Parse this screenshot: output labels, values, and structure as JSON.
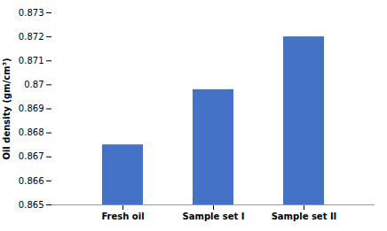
{
  "chart_data": {
    "type": "bar",
    "categories": [
      "Fresh oil",
      "Sample set I",
      "Sample set II"
    ],
    "values": [
      0.8675,
      0.8698,
      0.872
    ],
    "color": "#4472C4",
    "ylabel": "Oil density (gm/cm³)",
    "ylim": [
      0.865,
      0.873
    ],
    "yticks": [
      0.865,
      0.866,
      0.867,
      0.868,
      0.869,
      0.87,
      0.871,
      0.872,
      0.873
    ],
    "grid": false
  }
}
